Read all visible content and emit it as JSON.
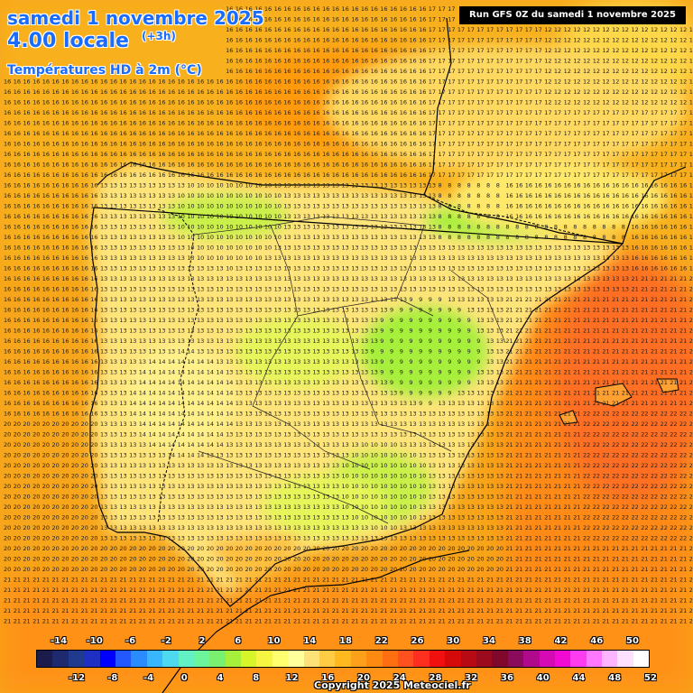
{
  "header": {
    "date_title": "samedi 1 novembre 2025",
    "time_title": "4.00 locale",
    "forecast_offset": "(+3h)",
    "parameter": "Températures HD à 2m (°C)",
    "run_info": "Run GFS 0Z du samedi 1 novembre 2025"
  },
  "footer": {
    "copyright": "Copyright 2025 Meteociel.fr"
  },
  "legend": {
    "labels_top": [
      "-14",
      "-10",
      "-6",
      "-2",
      "2",
      "6",
      "10",
      "14",
      "18",
      "22",
      "26",
      "30",
      "34",
      "38",
      "42",
      "46",
      "50"
    ],
    "labels_bottom": [
      "-12",
      "-8",
      "-4",
      "0",
      "4",
      "8",
      "12",
      "16",
      "20",
      "24",
      "28",
      "32",
      "36",
      "40",
      "44",
      "48",
      "52"
    ],
    "colors": [
      "#1b1b4d",
      "#1f2a6e",
      "#203a8e",
      "#1f2fc4",
      "#0000ff",
      "#2458ff",
      "#2b8cff",
      "#38b7ff",
      "#4fd9f0",
      "#62f0c5",
      "#6cf59a",
      "#7af070",
      "#a6ef3a",
      "#d6f52a",
      "#f5f542",
      "#ffff70",
      "#ffff9c",
      "#ffe17a",
      "#ffcc44",
      "#ffb81e",
      "#ffa01a",
      "#ff8a12",
      "#ff6e10",
      "#ff5020",
      "#ff2f1f",
      "#f01010",
      "#d40a0a",
      "#b80a14",
      "#9c0a1e",
      "#80082c",
      "#8a0a5c",
      "#b00a8c",
      "#d60ab4",
      "#f00ad2",
      "#ff3cf0",
      "#ff78ff",
      "#ffb4ff",
      "#ffe0ff",
      "#ffffff"
    ]
  },
  "colors": {
    "sea_warm": "#f7a51a",
    "sea_hot": "#ff8a12",
    "land_mild": "#ffe47a",
    "land_cool": "#f0f57a",
    "land_cold": "#a6ef3a",
    "title_blue": "#1a6cff"
  }
}
